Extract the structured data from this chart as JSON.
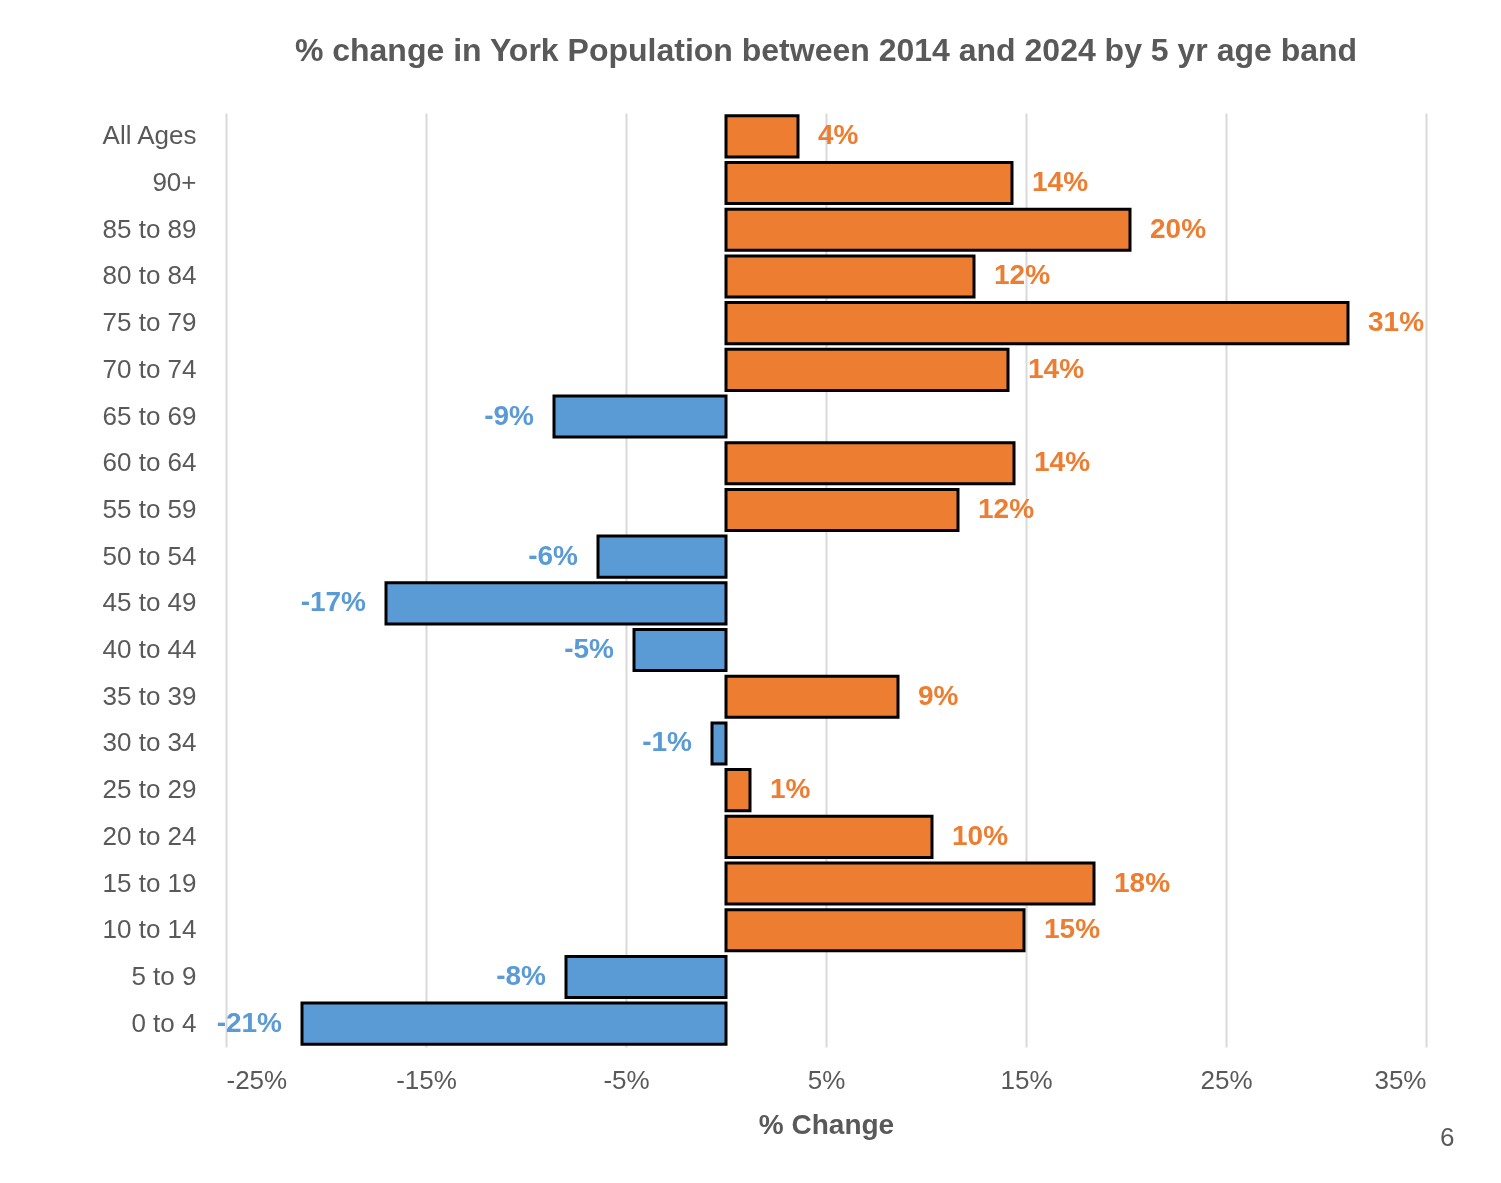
{
  "chart_data": {
    "type": "bar",
    "orientation": "horizontal",
    "title": "% change in York Population between 2014 and 2024 by 5 yr age band",
    "xlabel": "% Change",
    "categories": [
      "All Ages",
      "90+",
      "85 to 89",
      "80 to 84",
      "75 to 79",
      "70 to 74",
      "65 to 69",
      "60 to 64",
      "55 to 59",
      "50 to 54",
      "45 to 49",
      "40 to 44",
      "35 to 39",
      "30 to 34",
      "25 to 29",
      "20 to 24",
      "15 to 19",
      "10 to 14",
      "5 to 9",
      "0 to 4"
    ],
    "values": [
      3.6,
      14.3,
      20.2,
      12.4,
      31.1,
      14.1,
      -8.6,
      14.4,
      11.6,
      -6.4,
      -17,
      -4.6,
      8.6,
      -0.7,
      1.2,
      10.3,
      18.4,
      14.9,
      -8,
      -21.2
    ],
    "value_labels": [
      "4%",
      "14%",
      "20%",
      "12%",
      "31%",
      "14%",
      "-9%",
      "14%",
      "12%",
      "-6%",
      "-17%",
      "-5%",
      "9%",
      "-1%",
      "1%",
      "10%",
      "18%",
      "15%",
      "-8%",
      "-21%"
    ],
    "colors": [
      "#ed7d31",
      "#ed7d31",
      "#ed7d31",
      "#ed7d31",
      "#ed7d31",
      "#ed7d31",
      "#5b9bd5",
      "#ed7d31",
      "#ed7d31",
      "#5b9bd5",
      "#5b9bd5",
      "#5b9bd5",
      "#ed7d31",
      "#5b9bd5",
      "#ed7d31",
      "#ed7d31",
      "#ed7d31",
      "#ed7d31",
      "#5b9bd5",
      "#5b9bd5"
    ],
    "xlim": [
      -25,
      35
    ],
    "xticks": [
      {
        "value": -25,
        "label": "-25%"
      },
      {
        "value": -15,
        "label": "-15%"
      },
      {
        "value": -5,
        "label": "-5%"
      },
      {
        "value": 5,
        "label": "5%"
      },
      {
        "value": 15,
        "label": "15%"
      },
      {
        "value": 25,
        "label": "25%"
      },
      {
        "value": 35,
        "label": "35%"
      }
    ],
    "grid": "x",
    "annotations": [
      "6"
    ]
  }
}
